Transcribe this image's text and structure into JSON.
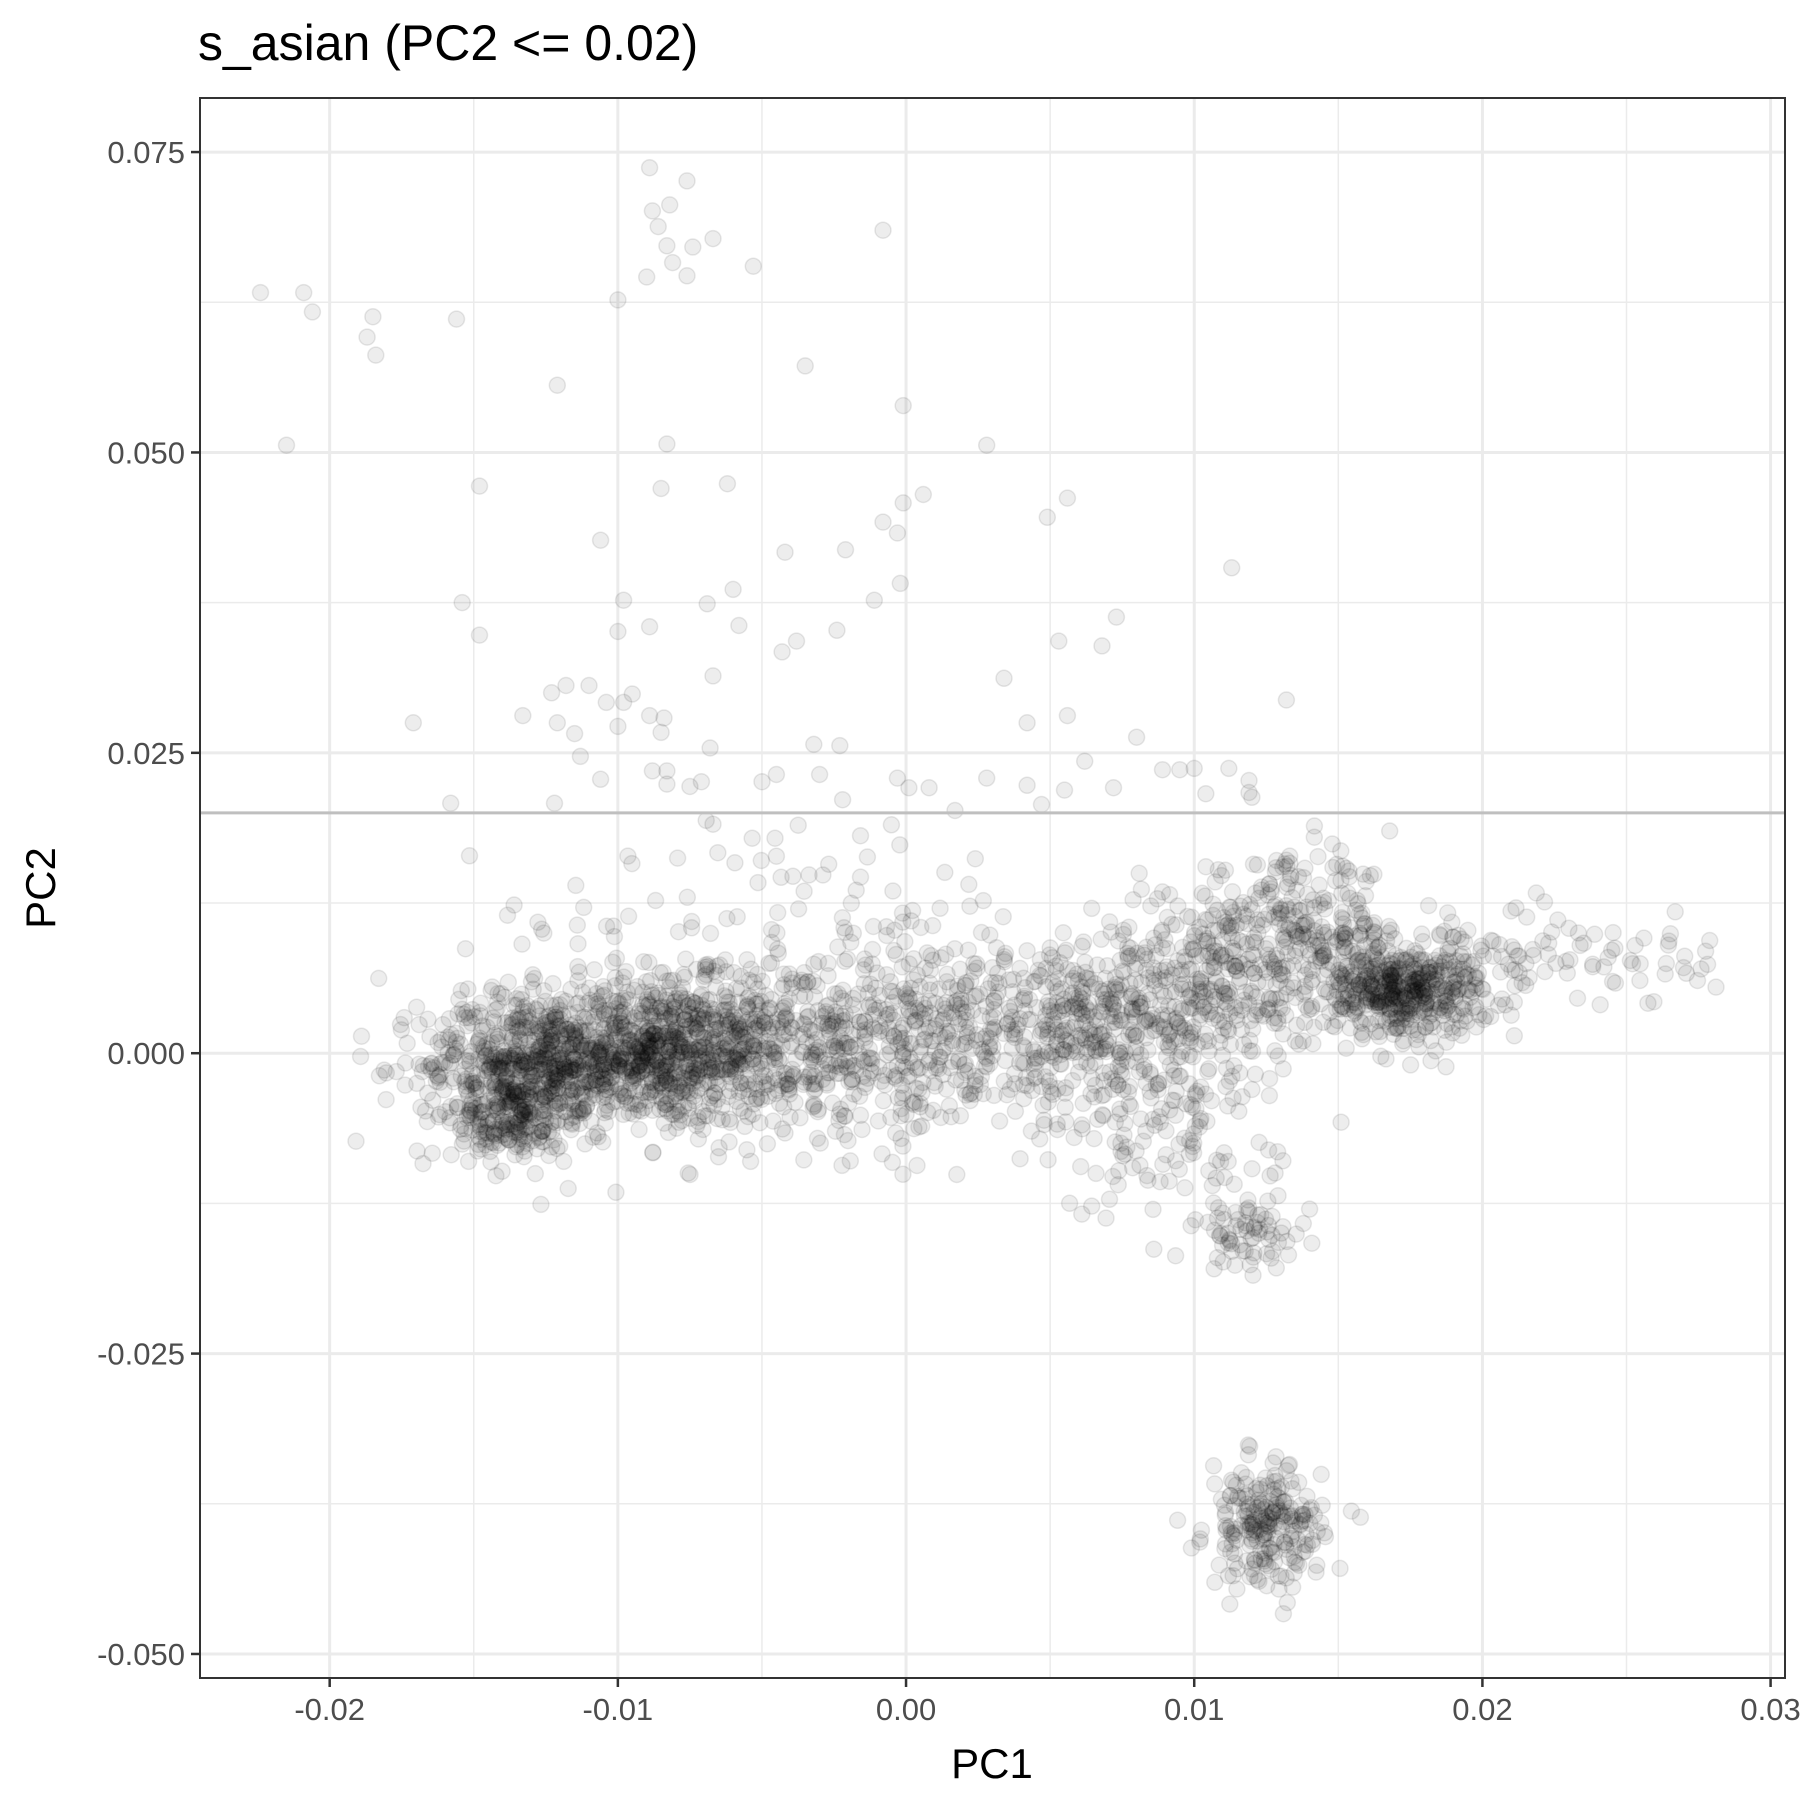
{
  "chart_data": {
    "type": "scatter",
    "title": "s_asian (PC2 <= 0.02)",
    "xlabel": "PC1",
    "ylabel": "PC2",
    "xlim": [
      -0.0245,
      0.0305
    ],
    "ylim": [
      -0.052,
      0.0795
    ],
    "x_ticks": [
      -0.02,
      -0.01,
      0.0,
      0.01,
      0.02,
      0.03
    ],
    "x_tick_labels": [
      "-0.02",
      "-0.01",
      "0.00",
      "0.01",
      "0.02",
      "0.03"
    ],
    "y_ticks": [
      -0.05,
      -0.025,
      0.0,
      0.025,
      0.05,
      0.075
    ],
    "y_tick_labels": [
      "-0.050",
      "-0.025",
      "0.000",
      "0.025",
      "0.050",
      "0.075"
    ],
    "grid": true,
    "reference_line": {
      "type": "horizontal",
      "y": 0.02,
      "color": "#bfbfbf"
    },
    "point_color": "#000000",
    "point_alpha": 0.08,
    "clusters": [
      {
        "cx": -0.0088,
        "cy": 0.0,
        "sx": 0.0025,
        "sy": 0.003,
        "n": 900
      },
      {
        "cx": -0.0133,
        "cy": -0.001,
        "sx": 0.0018,
        "sy": 0.003,
        "n": 500
      },
      {
        "cx": -0.0138,
        "cy": -0.0055,
        "sx": 0.001,
        "sy": 0.002,
        "n": 160
      },
      {
        "cx": -0.004,
        "cy": 0.0005,
        "sx": 0.003,
        "sy": 0.004,
        "n": 350
      },
      {
        "cx": 0.0015,
        "cy": 0.0015,
        "sx": 0.003,
        "sy": 0.004,
        "n": 350
      },
      {
        "cx": 0.0065,
        "cy": 0.003,
        "sx": 0.002,
        "sy": 0.0035,
        "n": 300
      },
      {
        "cx": 0.0105,
        "cy": 0.005,
        "sx": 0.002,
        "sy": 0.004,
        "n": 260
      },
      {
        "cx": 0.0135,
        "cy": 0.01,
        "sx": 0.0018,
        "sy": 0.003,
        "n": 250
      },
      {
        "cx": 0.0172,
        "cy": 0.0052,
        "sx": 0.0015,
        "sy": 0.0018,
        "n": 480
      },
      {
        "cx": 0.022,
        "cy": 0.008,
        "sx": 0.003,
        "sy": 0.0022,
        "n": 110
      },
      {
        "cx": 0.009,
        "cy": -0.007,
        "sx": 0.002,
        "sy": 0.0035,
        "n": 120
      },
      {
        "cx": 0.012,
        "cy": -0.015,
        "sx": 0.001,
        "sy": 0.0015,
        "n": 70
      },
      {
        "cx": 0.0125,
        "cy": -0.0395,
        "sx": 0.001,
        "sy": 0.0025,
        "n": 230
      },
      {
        "cx": -0.005,
        "cy": 0.008,
        "sx": 0.005,
        "sy": 0.006,
        "n": 150
      }
    ],
    "outliers": [
      [
        -0.0224,
        0.0633
      ],
      [
        -0.0209,
        0.0633
      ],
      [
        -0.0206,
        0.0617
      ],
      [
        -0.0185,
        0.0613
      ],
      [
        -0.0187,
        0.0596
      ],
      [
        -0.0184,
        0.0581
      ],
      [
        -0.0156,
        0.0611
      ],
      [
        -0.0215,
        0.0506
      ],
      [
        -0.0089,
        0.0737
      ],
      [
        -0.0076,
        0.0726
      ],
      [
        -0.0088,
        0.0701
      ],
      [
        -0.0082,
        0.0706
      ],
      [
        -0.0086,
        0.0688
      ],
      [
        -0.0083,
        0.0672
      ],
      [
        -0.0074,
        0.0671
      ],
      [
        -0.0067,
        0.0678
      ],
      [
        -0.0081,
        0.0658
      ],
      [
        -0.0076,
        0.0647
      ],
      [
        -0.009,
        0.0646
      ],
      [
        -0.0053,
        0.0655
      ],
      [
        -0.0008,
        0.0685
      ],
      [
        -0.01,
        0.0627
      ],
      [
        -0.0121,
        0.0556
      ],
      [
        -0.0035,
        0.0572
      ],
      [
        -0.0001,
        0.0539
      ],
      [
        -0.0083,
        0.0507
      ],
      [
        0.0028,
        0.0506
      ],
      [
        -0.0148,
        0.0472
      ],
      [
        -0.0085,
        0.047
      ],
      [
        -0.0062,
        0.0474
      ],
      [
        0.0006,
        0.0465
      ],
      [
        -0.0001,
        0.0458
      ],
      [
        0.0049,
        0.0446
      ],
      [
        0.0056,
        0.0462
      ],
      [
        -0.0008,
        0.0442
      ],
      [
        -0.0003,
        0.0433
      ],
      [
        -0.0106,
        0.0427
      ],
      [
        -0.0042,
        0.0417
      ],
      [
        -0.0021,
        0.0419
      ],
      [
        0.0113,
        0.0404
      ],
      [
        -0.0154,
        0.0375
      ],
      [
        -0.0098,
        0.0377
      ],
      [
        -0.0069,
        0.0374
      ],
      [
        -0.006,
        0.0386
      ],
      [
        -0.0011,
        0.0377
      ],
      [
        -0.0002,
        0.0391
      ],
      [
        0.0073,
        0.0363
      ],
      [
        -0.0148,
        0.0348
      ],
      [
        -0.01,
        0.0351
      ],
      [
        -0.0089,
        0.0355
      ],
      [
        -0.0058,
        0.0356
      ],
      [
        -0.0038,
        0.0343
      ],
      [
        -0.0024,
        0.0352
      ],
      [
        0.0053,
        0.0343
      ],
      [
        0.0068,
        0.0339
      ],
      [
        -0.0043,
        0.0334
      ],
      [
        -0.0067,
        0.0314
      ],
      [
        0.0034,
        0.0312
      ],
      [
        -0.0118,
        0.0306
      ],
      [
        -0.011,
        0.0306
      ],
      [
        -0.0123,
        0.03
      ],
      [
        -0.0104,
        0.0292
      ],
      [
        -0.0098,
        0.0292
      ],
      [
        -0.0095,
        0.0299
      ],
      [
        0.0132,
        0.0294
      ],
      [
        -0.0171,
        0.0275
      ],
      [
        -0.0133,
        0.0281
      ],
      [
        -0.0121,
        0.0275
      ],
      [
        -0.0115,
        0.0266
      ],
      [
        -0.0089,
        0.0281
      ],
      [
        -0.0084,
        0.0279
      ],
      [
        0.0056,
        0.0281
      ],
      [
        0.0042,
        0.0275
      ],
      [
        -0.01,
        0.0272
      ],
      [
        -0.0085,
        0.0267
      ],
      [
        -0.0113,
        0.0247
      ],
      [
        -0.0068,
        0.0254
      ],
      [
        -0.0032,
        0.0257
      ],
      [
        -0.0023,
        0.0256
      ],
      [
        0.008,
        0.0263
      ],
      [
        -0.0088,
        0.0235
      ],
      [
        -0.0083,
        0.0235
      ],
      [
        -0.0106,
        0.0228
      ],
      [
        -0.0045,
        0.0232
      ],
      [
        0.0062,
        0.0243
      ],
      [
        0.0089,
        0.0236
      ],
      [
        0.0095,
        0.0236
      ],
      [
        0.01,
        0.0237
      ],
      [
        0.0112,
        0.0237
      ],
      [
        0.0119,
        0.0227
      ],
      [
        -0.0083,
        0.0224
      ],
      [
        -0.0075,
        0.0222
      ],
      [
        -0.0071,
        0.0226
      ],
      [
        -0.005,
        0.0226
      ],
      [
        -0.003,
        0.0232
      ],
      [
        -0.0003,
        0.0229
      ],
      [
        0.0001,
        0.0221
      ],
      [
        0.0008,
        0.0221
      ],
      [
        0.0028,
        0.0229
      ],
      [
        0.0042,
        0.0223
      ],
      [
        0.0055,
        0.0219
      ],
      [
        0.0072,
        0.0221
      ],
      [
        0.0104,
        0.0216
      ],
      [
        0.0119,
        0.0217
      ],
      [
        0.012,
        0.0213
      ],
      [
        -0.0158,
        0.0208
      ],
      [
        -0.0122,
        0.0208
      ],
      [
        -0.0022,
        0.0211
      ],
      [
        0.0017,
        0.0202
      ],
      [
        0.0047,
        0.0207
      ]
    ]
  }
}
